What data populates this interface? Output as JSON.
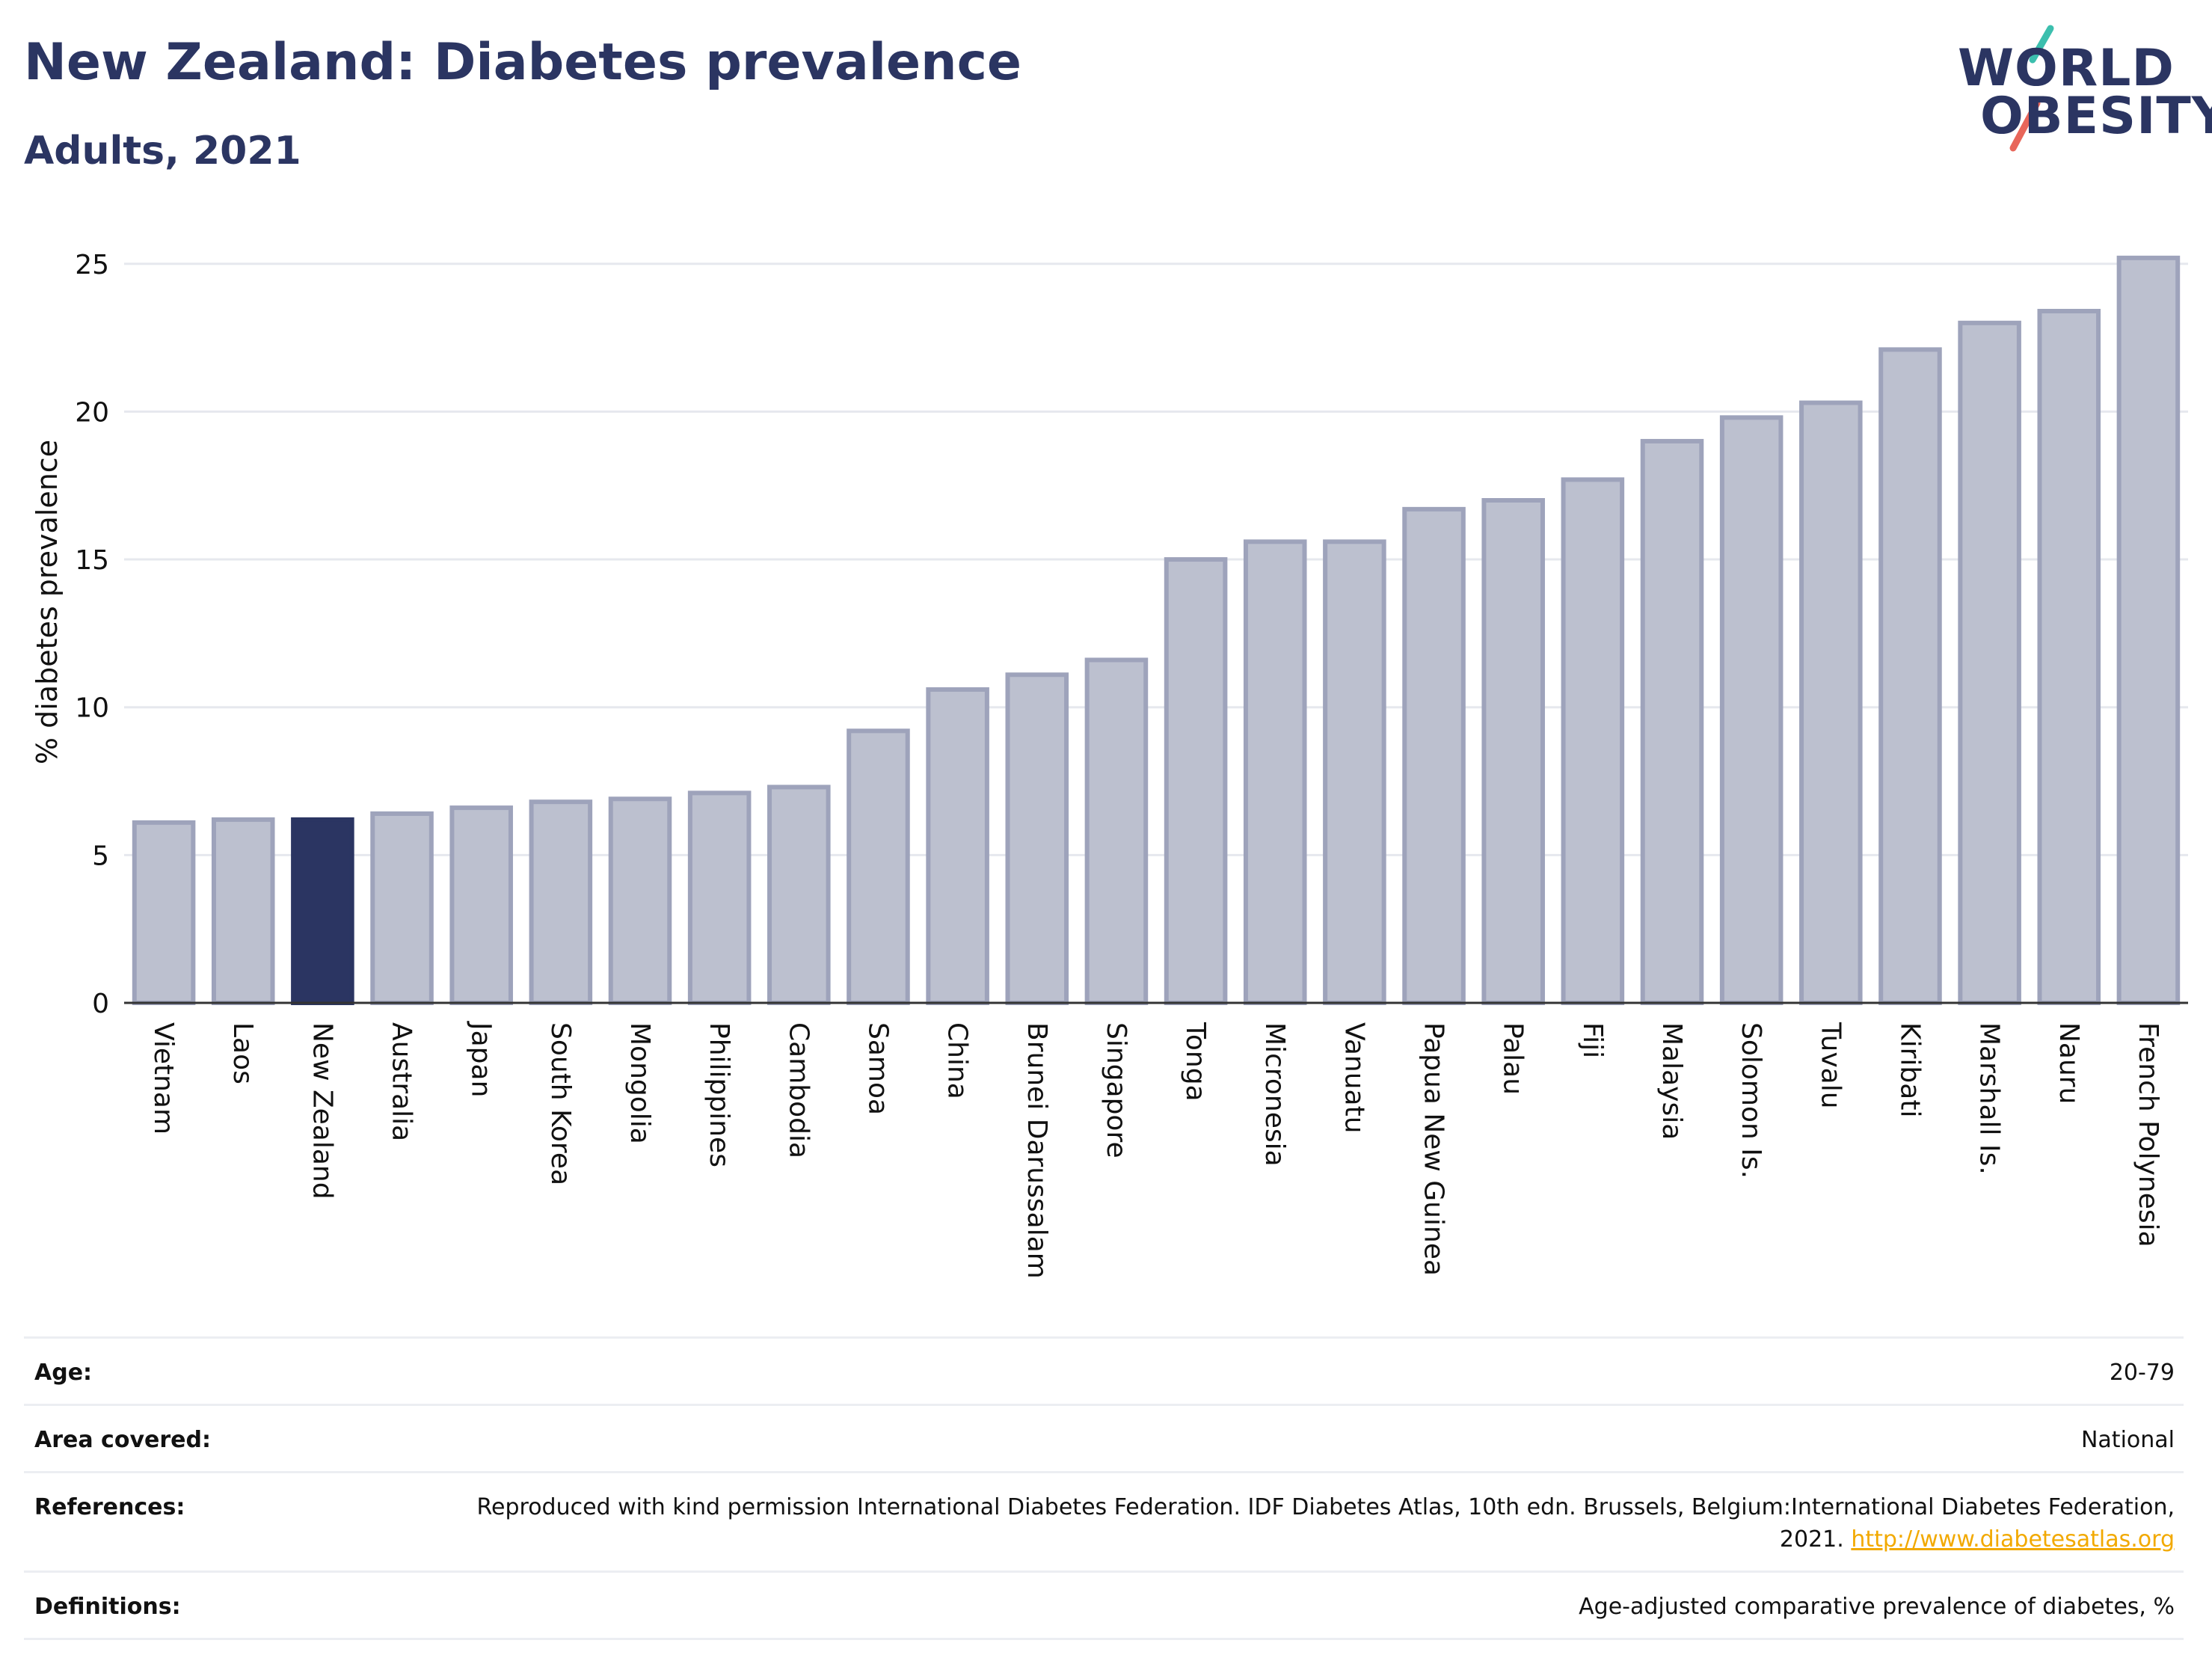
{
  "header": {
    "title": "New Zealand: Diabetes prevalence",
    "subtitle": "Adults, 2021"
  },
  "logo": {
    "line1": "WORLD",
    "line2": "OBESITY",
    "accent_colors": [
      "#3cbfae",
      "#e8665a"
    ]
  },
  "colors": {
    "highlight": "#2b3562",
    "bar_fill": "#bcc0cf",
    "bar_stroke": "#9ea3bb",
    "grid": "#e6e8ee",
    "text": "#2b3562",
    "link": "#f2a900"
  },
  "chart_data": {
    "type": "bar",
    "ylabel": "% diabetes prevalence",
    "xlabel": "",
    "ylim": [
      0,
      25.5
    ],
    "yticks": [
      0,
      5,
      10,
      15,
      20,
      25
    ],
    "grid": true,
    "highlight": "New Zealand",
    "categories": [
      "Vietnam",
      "Laos",
      "New Zealand",
      "Australia",
      "Japan",
      "South Korea",
      "Mongolia",
      "Philippines",
      "Cambodia",
      "Samoa",
      "China",
      "Brunei Darussalam",
      "Singapore",
      "Tonga",
      "Micronesia",
      "Vanuatu",
      "Papua New Guinea",
      "Palau",
      "Fiji",
      "Malaysia",
      "Solomon Is.",
      "Tuvalu",
      "Kiribati",
      "Marshall Is.",
      "Nauru",
      "French Polynesia"
    ],
    "values": [
      6.1,
      6.2,
      6.2,
      6.4,
      6.6,
      6.8,
      6.9,
      7.1,
      7.3,
      9.2,
      10.6,
      11.1,
      11.6,
      15.0,
      15.6,
      15.6,
      16.7,
      17.0,
      17.7,
      19.0,
      19.8,
      20.3,
      22.1,
      23.0,
      23.4,
      25.2
    ]
  },
  "info": {
    "age_label": "Age:",
    "age_value": "20-79",
    "area_label": "Area covered:",
    "area_value": "National",
    "references_label": "References:",
    "references_text": "Reproduced with kind permission International Diabetes Federation.  IDF Diabetes Atlas, 10th edn. Brussels, Belgium:International Diabetes Federation, 2021.",
    "references_link": "http://www.diabetesatlas.org",
    "definitions_label": "Definitions:",
    "definitions_value": "Age-adjusted comparative prevalence of diabetes, %"
  }
}
